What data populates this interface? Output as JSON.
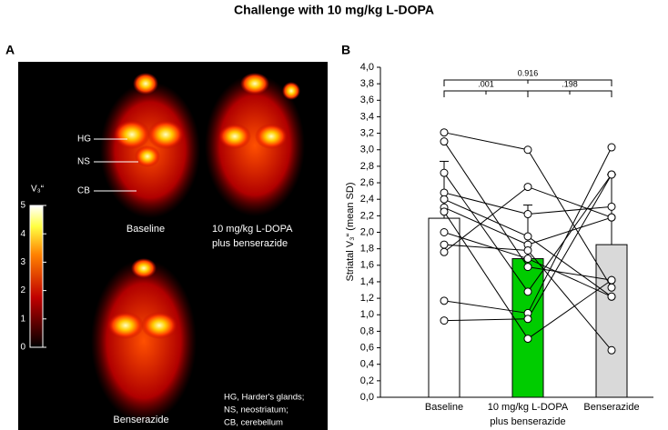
{
  "title": "Challenge with 10 mg/kg L-DOPA",
  "panel_a": {
    "letter": "A",
    "labels": [
      "HG",
      "NS",
      "CB"
    ],
    "image_captions": [
      "Baseline",
      "10 mg/kg L-DOPA",
      "plus benserazide",
      "Benserazide"
    ],
    "colorbar": {
      "label": "V₃“",
      "lim": [
        0,
        5
      ],
      "ticks": [
        0,
        1,
        2,
        3,
        4,
        5
      ]
    },
    "note": [
      "HG, Harder's glands;",
      "NS, neostriatum;",
      "CB, cerebellum"
    ]
  },
  "chart_data": {
    "type": "bar",
    "letter": "B",
    "ylabel": "Striatal V₃“ (mean  SD)",
    "categories": [
      [
        "Baseline"
      ],
      [
        "10 mg/kg L-DOPA",
        "plus benserazide"
      ],
      [
        "Benserazide"
      ]
    ],
    "values": [
      2.17,
      1.68,
      1.85
    ],
    "errors": [
      0.69,
      0.65,
      0.85
    ],
    "colors": [
      "#ffffff",
      "#00cc00",
      "#d9d9d9"
    ],
    "paired": [
      [
        3.21,
        3.0,
        1.33
      ],
      [
        3.1,
        1.58,
        1.42
      ],
      [
        2.72,
        1.28,
        2.7
      ],
      [
        2.48,
        2.22,
        2.31
      ],
      [
        2.4,
        1.95,
        1.22
      ],
      [
        2.3,
        1.85,
        2.18
      ],
      [
        2.25,
        0.71,
        1.42
      ],
      [
        2.0,
        1.68,
        1.22
      ],
      [
        1.85,
        1.78,
        0.57
      ],
      [
        1.76,
        2.55,
        2.18
      ],
      [
        1.17,
        1.02,
        3.03
      ],
      [
        0.93,
        0.95,
        2.7
      ]
    ],
    "comparisons": [
      {
        "from": 0,
        "to": 1,
        "label": ".001"
      },
      {
        "from": 1,
        "to": 2,
        "label": ".198"
      },
      {
        "from": 0,
        "to": 2,
        "label": "0.916"
      }
    ],
    "ylim": [
      0,
      4
    ],
    "yticks": [
      {
        "value": 0,
        "label": "0,0"
      },
      {
        "value": 0.2,
        "label": "0,2"
      },
      {
        "value": 0.4,
        "label": "0,4"
      },
      {
        "value": 0.6,
        "label": "0,6"
      },
      {
        "value": 0.8,
        "label": "0,8"
      },
      {
        "value": 1,
        "label": "1,0"
      },
      {
        "value": 1.2,
        "label": "1,2"
      },
      {
        "value": 1.4,
        "label": "1,4"
      },
      {
        "value": 1.6,
        "label": "1,6"
      },
      {
        "value": 1.8,
        "label": "1,8"
      },
      {
        "value": 2,
        "label": "2,0"
      },
      {
        "value": 2.2,
        "label": "2,2"
      },
      {
        "value": 2.4,
        "label": "2,4"
      },
      {
        "value": 2.6,
        "label": "2,6"
      },
      {
        "value": 2.8,
        "label": "2,8"
      },
      {
        "value": 3,
        "label": "3,0"
      },
      {
        "value": 3.2,
        "label": "3,2"
      },
      {
        "value": 3.4,
        "label": "3,4"
      },
      {
        "value": 3.6,
        "label": "3,6"
      },
      {
        "value": 3.8,
        "label": "3,8"
      },
      {
        "value": 4,
        "label": "4,0"
      }
    ]
  }
}
